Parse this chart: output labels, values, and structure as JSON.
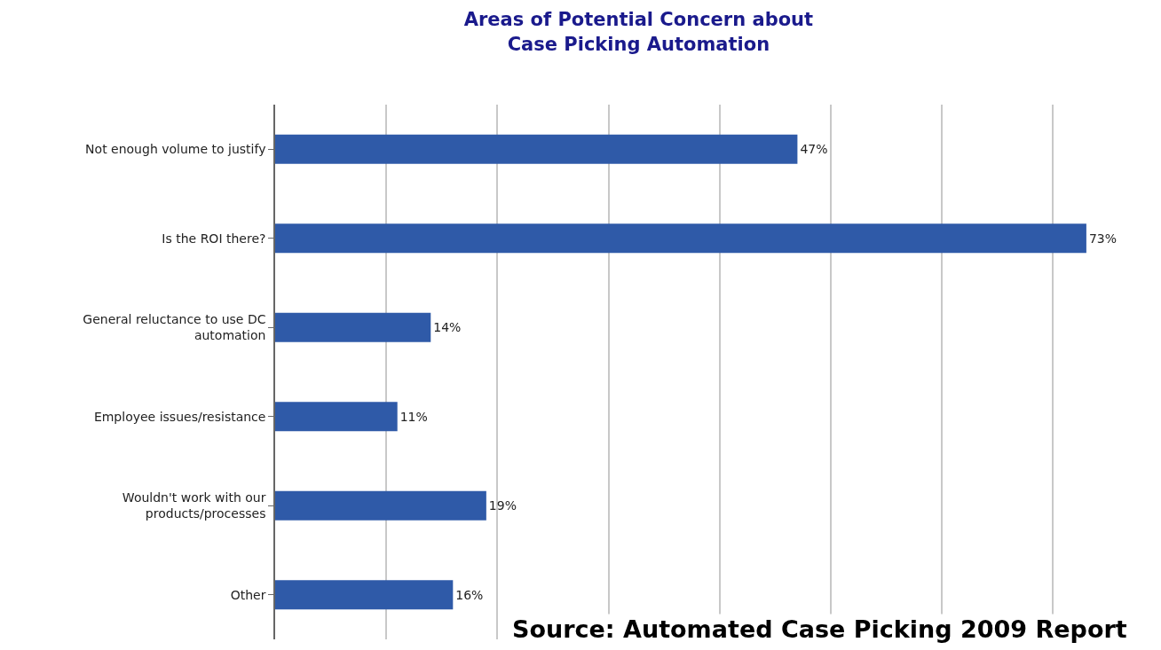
{
  "chart_data": {
    "type": "bar",
    "orientation": "horizontal",
    "title": "Areas of Potential Concern about Case Picking Automation",
    "categories": [
      "Not enough volume to justify",
      "Is the ROI there?",
      "General reluctance to use DC automation",
      "Employee issues/resistance",
      "Wouldn't work with our products/processes",
      "Other"
    ],
    "values": [
      47,
      73,
      14,
      11,
      19,
      16
    ],
    "value_labels": [
      "47%",
      "73%",
      "14%",
      "11%",
      "19%",
      "16%"
    ],
    "color": "#2f5aa8",
    "grid": "x",
    "legend": false,
    "tick_labels": "y",
    "annotations": [
      "Source: Automated Case Picking 2009 Report"
    ]
  }
}
